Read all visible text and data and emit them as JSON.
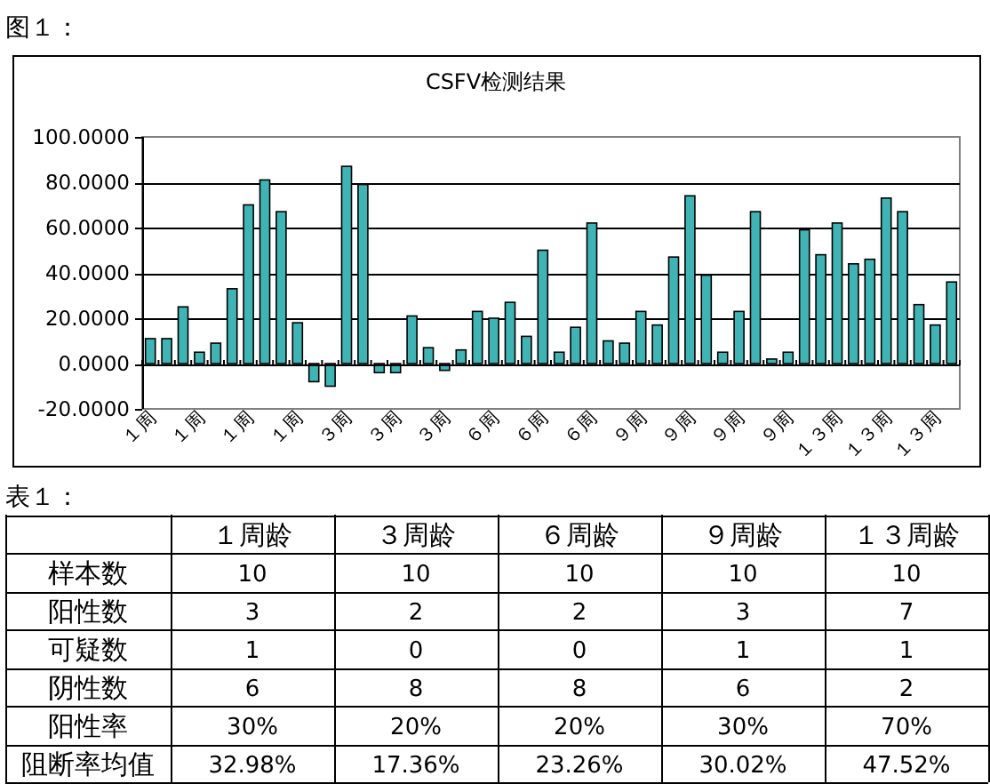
{
  "chart_data": [
    {
      "type": "bar",
      "title": "CSFV检测结果",
      "annotations": [
        "图１："
      ],
      "categories": [
        "１周",
        null,
        null,
        "１周",
        null,
        null,
        "１周",
        null,
        null,
        "１周",
        null,
        null,
        "３周",
        null,
        null,
        "３周",
        null,
        null,
        "３周",
        null,
        null,
        "６周",
        null,
        null,
        "６周",
        null,
        null,
        "６周",
        null,
        null,
        "９周",
        null,
        null,
        "９周",
        null,
        null,
        "９周",
        null,
        null,
        "９周",
        null,
        null,
        "１３周",
        null,
        null,
        "１３周",
        null,
        null,
        "１３周",
        null
      ],
      "values": [
        11,
        11,
        25,
        5,
        9,
        33,
        70,
        81,
        67,
        18,
        -8,
        -10,
        87,
        79,
        -4,
        -4,
        21,
        7,
        -3,
        6,
        23,
        20,
        27,
        12,
        50,
        5,
        16,
        62,
        10,
        9,
        23,
        17,
        47,
        74,
        39,
        5,
        23,
        67,
        2,
        5,
        59,
        48,
        62,
        44,
        46,
        73,
        67,
        26,
        17,
        36
      ],
      "color": "#40b4b4",
      "ylim": [
        -20,
        100
      ],
      "yticks": [
        {
          "value": -20,
          "label": "-20.0000"
        },
        {
          "value": 0,
          "label": "0.0000"
        },
        {
          "value": 20,
          "label": "20.0000"
        },
        {
          "value": 40,
          "label": "40.0000"
        },
        {
          "value": 60,
          "label": "60.0000"
        },
        {
          "value": 80,
          "label": "80.0000"
        },
        {
          "value": 100,
          "label": "100.0000"
        }
      ],
      "grid": "y"
    },
    {
      "type": "other",
      "title": "表１：",
      "categories": [
        "１周龄",
        "３周龄",
        "６周龄",
        "９周龄",
        "１３周龄"
      ],
      "y_categories": [
        "样本数",
        "阳性数",
        "可疑数",
        "阴性数",
        "阳性率",
        "阻断率均值"
      ],
      "cell_labels": [
        [
          "10",
          "10",
          "10",
          "10",
          "10"
        ],
        [
          "3",
          "2",
          "2",
          "3",
          "7"
        ],
        [
          "1",
          "0",
          "0",
          "1",
          "1"
        ],
        [
          "6",
          "8",
          "8",
          "6",
          "2"
        ],
        [
          "30%",
          "20%",
          "20%",
          "30%",
          "70%"
        ],
        [
          "32.98%",
          "17.36%",
          "23.26%",
          "30.02%",
          "47.52%"
        ]
      ]
    }
  ]
}
